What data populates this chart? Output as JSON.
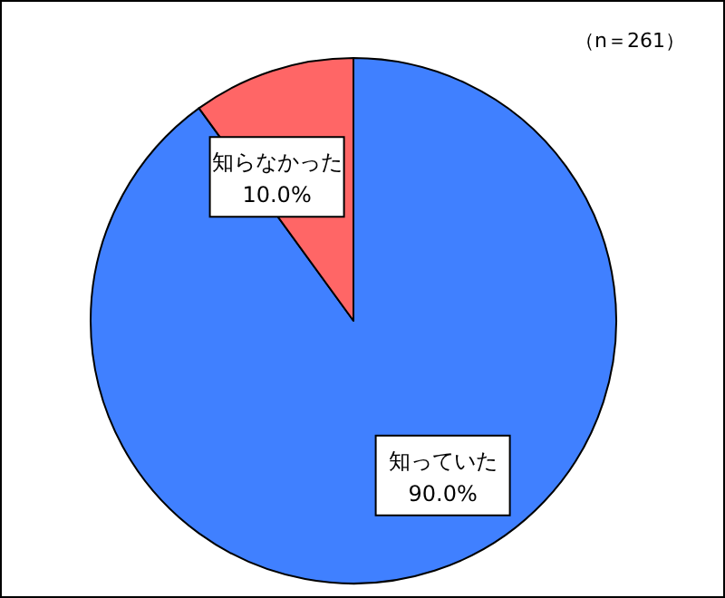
{
  "chart_data": {
    "type": "pie",
    "categories": [
      "知っていた",
      "知らなかった"
    ],
    "values": [
      90.0,
      10.0
    ],
    "colors": [
      "#4080ff",
      "#ff6666"
    ],
    "value_labels": [
      "90.0%",
      "10.0%"
    ],
    "annotations": [
      "（n＝261）"
    ]
  }
}
